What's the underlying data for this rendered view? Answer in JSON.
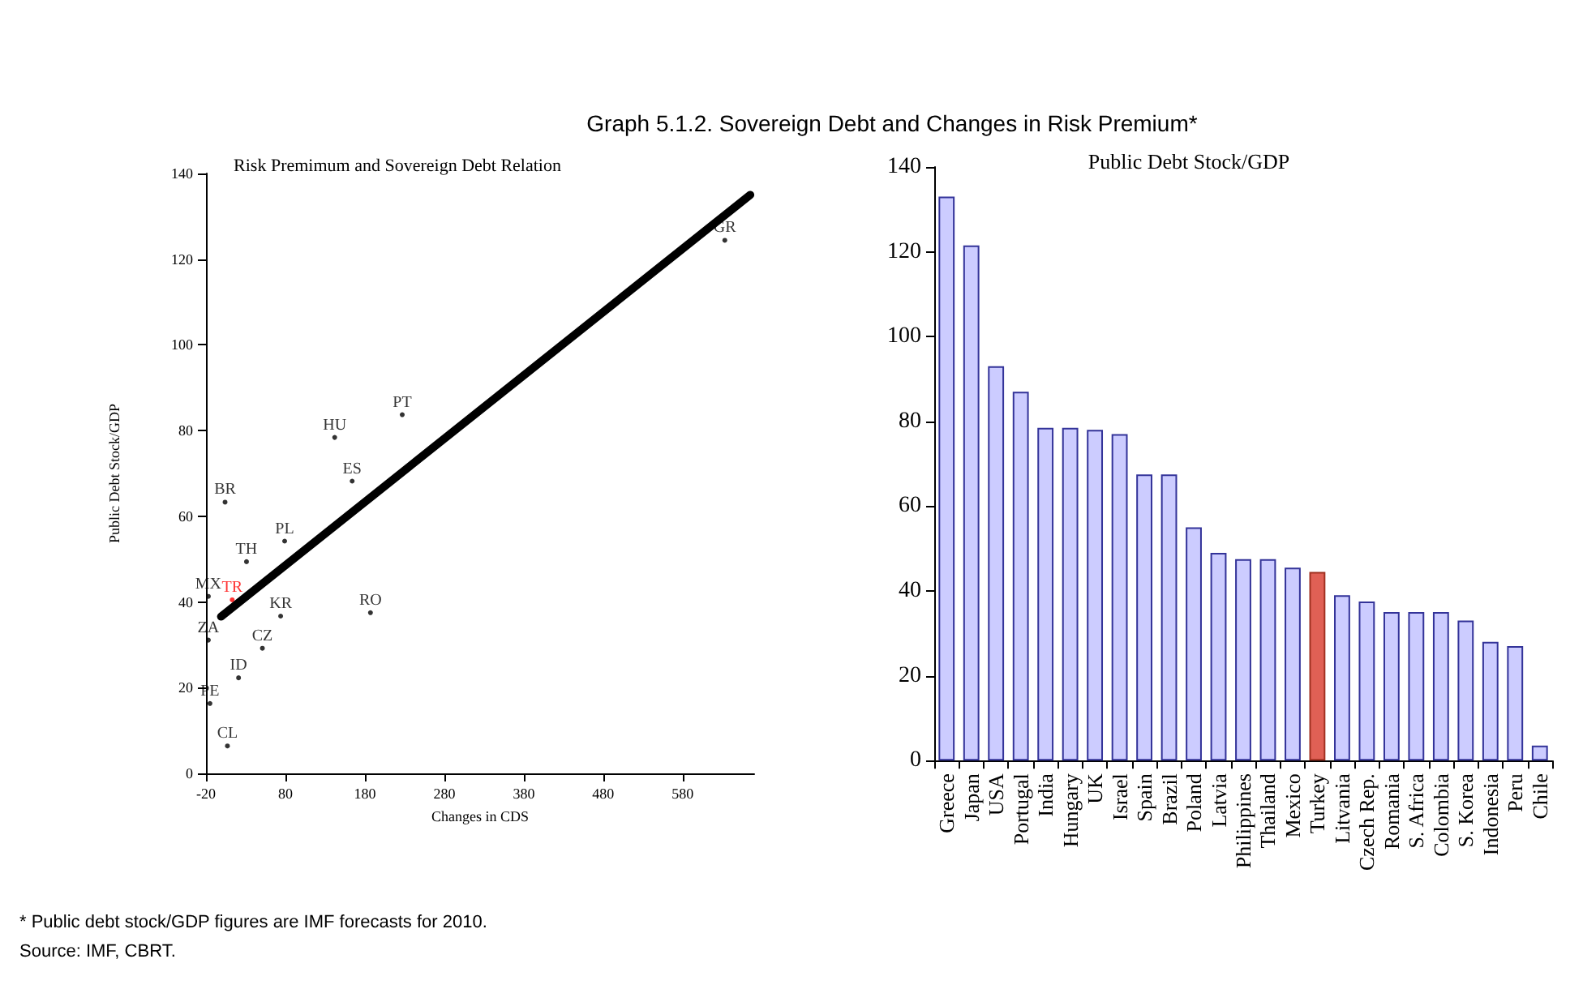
{
  "chart_data": [
    {
      "type": "scatter",
      "title": "Graph 5.1.2. Sovereign Debt and Changes in Risk Premium*",
      "subtitle": "Risk Premimum and Sovereign Debt Relation",
      "xlabel": "Changes in CDS",
      "ylabel": "Public Debt Stock/GDP",
      "annotations": [
        "* Public debt stock/GDP figures are IMF forecasts for 2010.",
        "Source: IMF, CBRT."
      ],
      "xlim": [
        -20,
        670
      ],
      "xticks": [
        -20,
        80,
        180,
        280,
        380,
        480,
        580
      ],
      "ylim": [
        0,
        140
      ],
      "yticks": [
        0,
        20,
        40,
        60,
        80,
        100,
        120,
        140
      ],
      "grid": false,
      "series": [
        {
          "type": "scatter",
          "marker": "none",
          "x": [
            633,
            227,
            142,
            164,
            4,
            79,
            31,
            -17,
            13,
            74,
            187,
            -17,
            51,
            21,
            -15,
            7
          ],
          "values": [
            124.4,
            83.7,
            78.4,
            68.2,
            63.3,
            54.2,
            49.4,
            41.3,
            40.5,
            36.7,
            37.5,
            31.1,
            29.2,
            22.3,
            16.3,
            6.4
          ],
          "value_labels": [
            "GR",
            "PT",
            "HU",
            "ES",
            "BR",
            "PL",
            "TH",
            "MX",
            "TR",
            "KR",
            "RO",
            "ZA",
            "CZ",
            "ID",
            "PE",
            "CL"
          ],
          "colors": [
            "#000000",
            "#000000",
            "#000000",
            "#000000",
            "#000000",
            "#000000",
            "#000000",
            "#000000",
            "#ff0000",
            "#000000",
            "#000000",
            "#000000",
            "#000000",
            "#000000",
            "#000000",
            "#000000"
          ]
        },
        {
          "type": "line",
          "marker": "none",
          "color": "#000000",
          "x": [
            -1,
            665
          ],
          "values": [
            36.6,
            135
          ]
        }
      ]
    },
    {
      "type": "bar",
      "title": "Public Debt Stock/GDP",
      "categories": [
        "Greece",
        "Japan",
        "USA",
        "Portugal",
        "India",
        "Hungary",
        "UK",
        "Israel",
        "Spain",
        "Brazil",
        "Poland",
        "Latvia",
        "Philippines",
        "Thailand",
        "Mexico",
        "Turkey",
        "Litvania",
        "Czech Rep.",
        "Romania",
        "S. Africa",
        "Colombia",
        "S. Korea",
        "Indonesia",
        "Peru",
        "Chile"
      ],
      "values": [
        133,
        121.5,
        93,
        87,
        78.5,
        78.5,
        78,
        77,
        67.5,
        67.5,
        55,
        49,
        47.5,
        47.5,
        45.5,
        44.5,
        39,
        37.5,
        35,
        35,
        35,
        33,
        28,
        27,
        3.5
      ],
      "colors": [
        "#ccccff",
        "#ccccff",
        "#ccccff",
        "#ccccff",
        "#ccccff",
        "#ccccff",
        "#ccccff",
        "#ccccff",
        "#ccccff",
        "#ccccff",
        "#ccccff",
        "#ccccff",
        "#ccccff",
        "#ccccff",
        "#ccccff",
        "#e06055",
        "#ccccff",
        "#ccccff",
        "#ccccff",
        "#ccccff",
        "#ccccff",
        "#ccccff",
        "#ccccff",
        "#ccccff",
        "#ccccff"
      ],
      "ylim": [
        0,
        140
      ],
      "yticks": [
        0,
        20,
        40,
        60,
        80,
        100,
        120,
        140
      ],
      "grid": false
    }
  ]
}
